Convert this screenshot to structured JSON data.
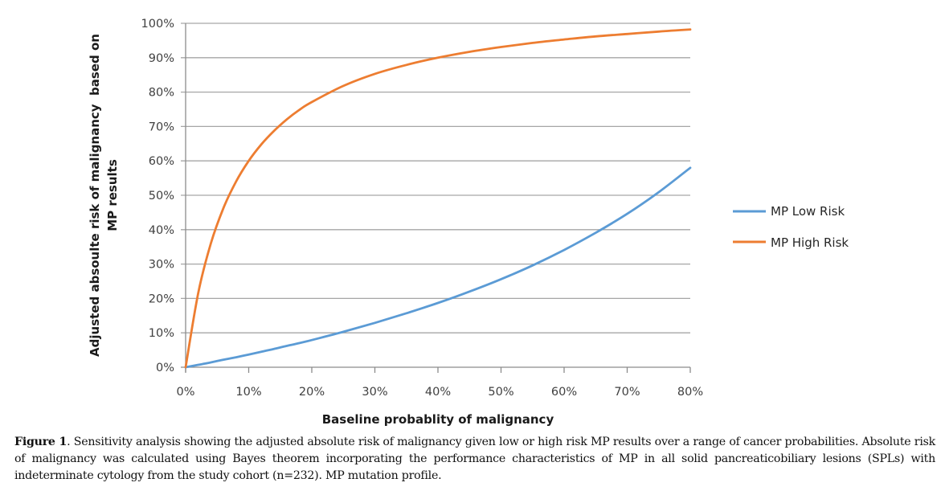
{
  "chart_data": {
    "type": "line",
    "title": "",
    "xlabel": "Baseline probablity of malignancy",
    "ylabel_lines": [
      "Adjusted absoulte risk of malignancy  based on",
      "MP results"
    ],
    "xlim": [
      0,
      80
    ],
    "ylim": [
      0,
      100
    ],
    "x_ticks": [
      "0%",
      "10%",
      "20%",
      "30%",
      "40%",
      "50%",
      "60%",
      "70%",
      "80%"
    ],
    "y_ticks": [
      "0%",
      "10%",
      "20%",
      "30%",
      "40%",
      "50%",
      "60%",
      "70%",
      "80%",
      "90%",
      "100%"
    ],
    "grid": "horizontal",
    "legend_position": "right",
    "x": [
      0,
      2,
      4,
      6,
      8,
      10,
      12,
      14,
      16,
      18,
      20,
      25,
      30,
      35,
      40,
      45,
      50,
      55,
      60,
      65,
      70,
      75,
      80
    ],
    "series": [
      {
        "name": "MP Low Risk",
        "color": "#5b9bd5",
        "values": [
          0,
          0.7,
          1.4,
          2.2,
          2.9,
          3.7,
          4.5,
          5.3,
          6.2,
          7.0,
          7.9,
          10.3,
          12.9,
          15.7,
          18.7,
          22.0,
          25.6,
          29.6,
          34.1,
          39.1,
          44.6,
          50.9,
          58.0
        ]
      },
      {
        "name": "MP High Risk",
        "color": "#ed7d31",
        "values": [
          0,
          21.6,
          36.0,
          46.3,
          54.0,
          60.0,
          64.8,
          68.7,
          72.0,
          74.8,
          77.1,
          81.8,
          85.3,
          87.9,
          90.0,
          91.7,
          93.1,
          94.3,
          95.3,
          96.2,
          96.9,
          97.6,
          98.2
        ]
      }
    ]
  },
  "caption": {
    "label": "Figure 1",
    "text": ". Sensitivity analysis showing the adjusted absolute risk of malignancy given low or high risk MP results over a range of cancer probabilities. Absolute risk of malignancy was calculated using Bayes theorem incorporating the performance characteristics of MP in all solid pancreaticobiliary lesions (SPLs) with indeterminate cytology from the study cohort (n=232). MP mutation profile."
  },
  "colors": {
    "grid": "#a6a6a6",
    "axis": "#8c8c8c"
  }
}
